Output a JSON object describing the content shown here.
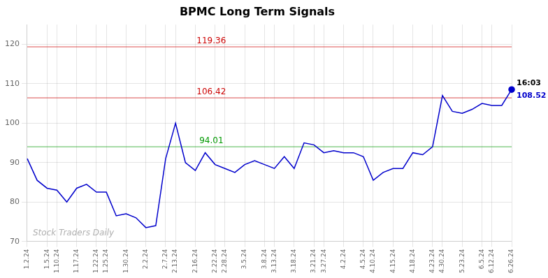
{
  "chart_data": {
    "type": "line",
    "title": "BPMC Long Term Signals",
    "categories": [
      "1.2.24",
      null,
      "1.5.24",
      "1.10.24",
      null,
      "1.17.24",
      null,
      "1.22.24",
      "1.25.24",
      null,
      "1.30.24",
      null,
      "2.2.24",
      null,
      "2.7.24",
      "2.13.24",
      null,
      "2.16.24",
      null,
      "2.22.24",
      "2.28.24",
      null,
      "3.5.24",
      null,
      "3.8.24",
      "3.13.24",
      null,
      "3.18.24",
      null,
      "3.21.24",
      "3.27.24",
      null,
      "4.2.24",
      null,
      "4.5.24",
      "4.10.24",
      null,
      "4.15.24",
      null,
      "4.18.24",
      null,
      "4.23.24",
      "4.30.24",
      null,
      "5.23.24",
      null,
      "6.5.24",
      "6.12.24",
      null,
      "6.26.24"
    ],
    "values": [
      91.0,
      85.5,
      83.5,
      83.0,
      80.0,
      83.5,
      84.5,
      82.5,
      82.5,
      76.5,
      77.0,
      76.0,
      73.5,
      74.0,
      91.0,
      100.0,
      90.0,
      88.0,
      92.5,
      89.5,
      88.5,
      87.5,
      89.5,
      90.5,
      89.5,
      88.5,
      91.5,
      88.5,
      95.0,
      94.5,
      92.5,
      93.0,
      92.5,
      92.5,
      91.5,
      85.5,
      87.5,
      88.5,
      88.5,
      92.5,
      92.0,
      94.0,
      107.0,
      103.0,
      102.5,
      103.5,
      105.0,
      104.5,
      104.5,
      108.52
    ],
    "color": "#0000cc",
    "ylim": [
      70,
      125
    ],
    "yticks": [
      70,
      80,
      90,
      100,
      110,
      120
    ],
    "grid": true,
    "hlines": [
      {
        "value": 119.36,
        "label": "119.36",
        "color": "#cc0000"
      },
      {
        "value": 106.42,
        "label": "106.42",
        "color": "#cc0000"
      },
      {
        "value": 94.01,
        "label": "94.01",
        "color": "#009900"
      }
    ],
    "last_point_labels": [
      {
        "text": "16:03",
        "color": "#000000"
      },
      {
        "text": "108.52",
        "color": "#0000cc"
      }
    ],
    "watermark": {
      "text": "Stock Traders Daily",
      "color": "#b0b0b0"
    }
  }
}
